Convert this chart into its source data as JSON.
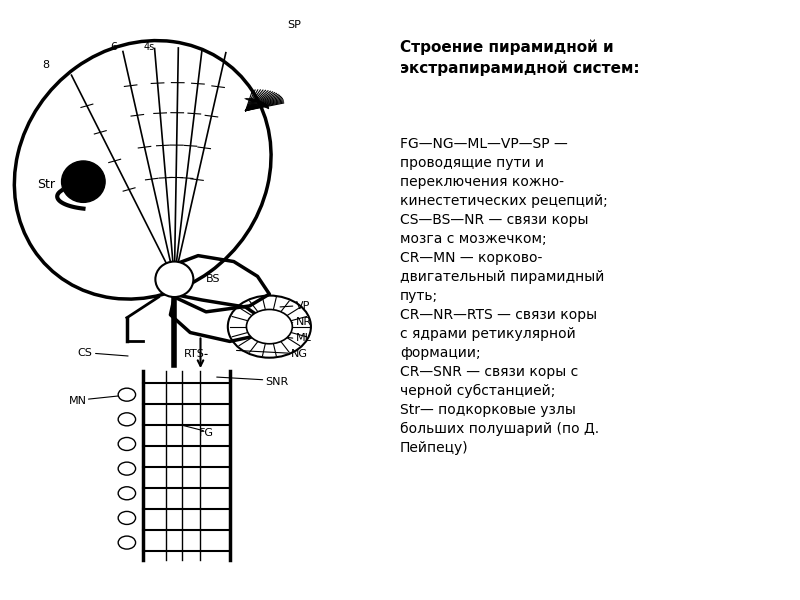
{
  "title": "",
  "background_color": "#ffffff",
  "right_panel_title": "Строение пирамидной и\nэкстрапирамидной систем:",
  "right_panel_text": "FG—NG—ML—VP—SP —\nпроводящие пути и\nпереключения кожно-\nкинестетических рецепций;\nCS—BS—NR — связи коры\nмозга с мозжечком;\nCR—MN — корково-\nдвигательный пирамидный\nпуть;\nCR—NR—RTS — связи коры\nс ядрами ретикулярной\nформации;\nCR—SNR — связи коры с\nчерной субстанцией;\nStr— подкорковые узлы\nбольших полушарий (по Д.\nПейпецу)"
}
